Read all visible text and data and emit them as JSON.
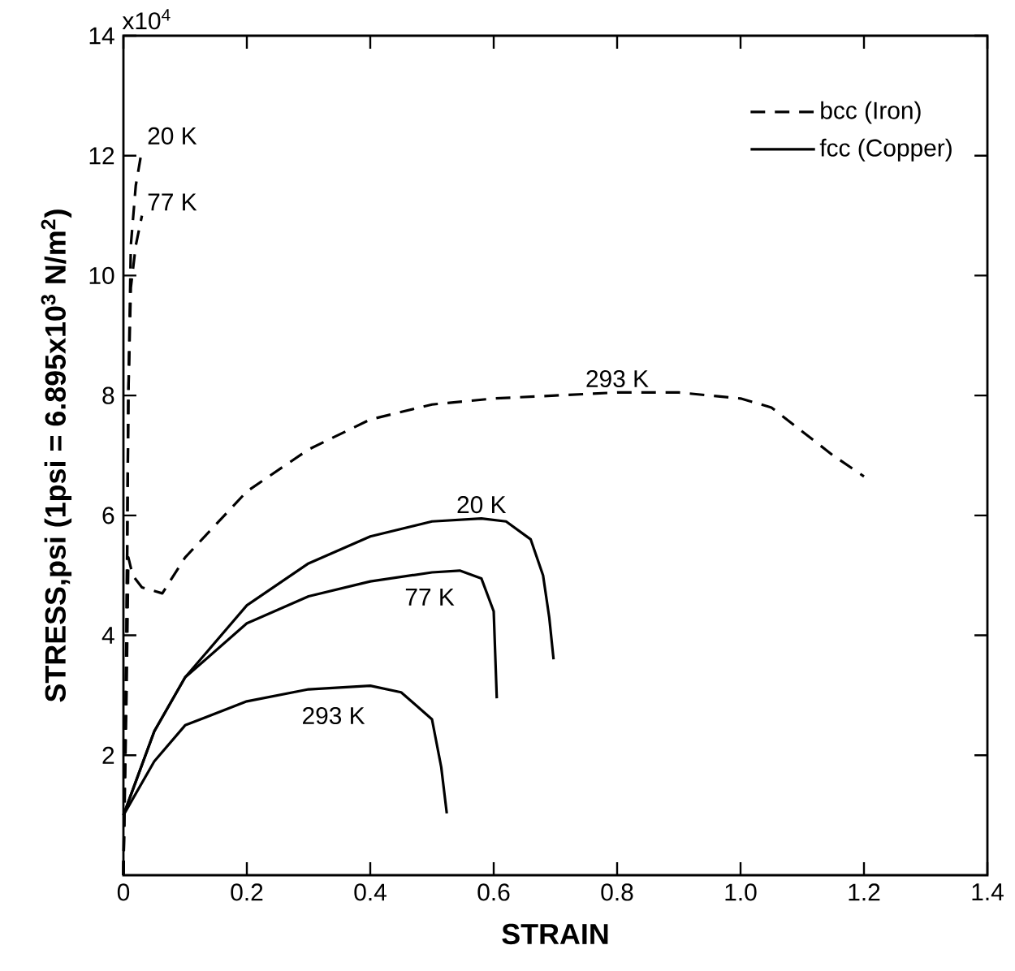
{
  "chart_data": {
    "type": "line",
    "xlabel": "STRAIN",
    "ylabel": "STRESS,psi  (1psi = 6.895x10$^{3}$  N/m$^{2}$)",
    "xlim": [
      0,
      1.4
    ],
    "ylim": [
      0,
      14
    ],
    "xticks": [
      0,
      0.2,
      0.4,
      0.6,
      0.8,
      {
        "value": 1.0,
        "label": "1.0"
      },
      1.2,
      1.4
    ],
    "yticks": [
      2,
      4,
      6,
      8,
      10,
      12,
      14
    ],
    "legend": "top right",
    "grid": false,
    "marker": "none",
    "series": [
      {
        "name": "bcc (Iron)",
        "color": "#000000",
        "line_style": "dashed",
        "x": [
          0,
          0.005,
          0.008,
          0.015,
          0.03,
          0.063,
          0.1,
          0.2,
          0.3,
          0.4,
          0.5,
          0.6,
          0.7,
          0.8,
          0.9,
          1.0,
          1.05,
          1.1,
          1.15,
          1.2
        ],
        "values": [
          0,
          3,
          5.3,
          5.0,
          4.8,
          4.7,
          5.3,
          6.4,
          7.1,
          7.6,
          7.85,
          7.95,
          8.0,
          8.05,
          8.05,
          7.95,
          7.8,
          7.4,
          7.0,
          6.65
        ]
      },
      {
        "color": "#000000",
        "line_style": "dashed",
        "x": [
          0,
          0.005,
          0.008,
          0.012,
          0.02,
          0.03
        ],
        "values": [
          0,
          4,
          8,
          10.5,
          11.5,
          12.1
        ]
      },
      {
        "color": "#000000",
        "line_style": "dashed",
        "x": [
          0,
          0.005,
          0.008,
          0.012,
          0.02,
          0.03
        ],
        "values": [
          0,
          4,
          8,
          9.8,
          10.5,
          11
        ]
      },
      {
        "name": "fcc (Copper)",
        "color": "#000000",
        "line_style": "solid",
        "x": [
          0,
          0.05,
          0.1,
          0.2,
          0.3,
          0.4,
          0.5,
          0.58,
          0.62,
          0.66,
          0.68,
          0.69,
          0.697
        ],
        "values": [
          1,
          2.4,
          3.3,
          4.5,
          5.2,
          5.65,
          5.9,
          5.95,
          5.9,
          5.6,
          5.0,
          4.3,
          3.6
        ]
      },
      {
        "color": "#000000",
        "line_style": "solid",
        "x": [
          0,
          0.05,
          0.1,
          0.2,
          0.3,
          0.4,
          0.5,
          0.545,
          0.58,
          0.6,
          0.605
        ],
        "values": [
          1,
          2.4,
          3.3,
          4.2,
          4.65,
          4.9,
          5.05,
          5.08,
          4.95,
          4.4,
          2.95
        ]
      },
      {
        "color": "#000000",
        "line_style": "solid",
        "x": [
          0,
          0.05,
          0.1,
          0.2,
          0.3,
          0.4,
          0.45,
          0.5,
          0.515,
          0.524
        ],
        "values": [
          1,
          1.9,
          2.5,
          2.9,
          3.1,
          3.16,
          3.05,
          2.6,
          1.8,
          1.03
        ]
      }
    ],
    "annotations": [
      "x10$^{4}$",
      {
        "text": "20 K",
        "x": 0.03,
        "y": 12.1
      },
      {
        "text": "77 K",
        "x": 0.03,
        "y": 11
      },
      {
        "text": "293 K",
        "x": 0.8,
        "y": 8.05
      },
      {
        "text": "20 K",
        "x": 0.58,
        "y": 5.95
      },
      {
        "text": "77 K",
        "x": 0.545,
        "y": 5.08
      },
      {
        "text": "293 K",
        "x": 0.4,
        "y": 3.16
      }
    ]
  }
}
